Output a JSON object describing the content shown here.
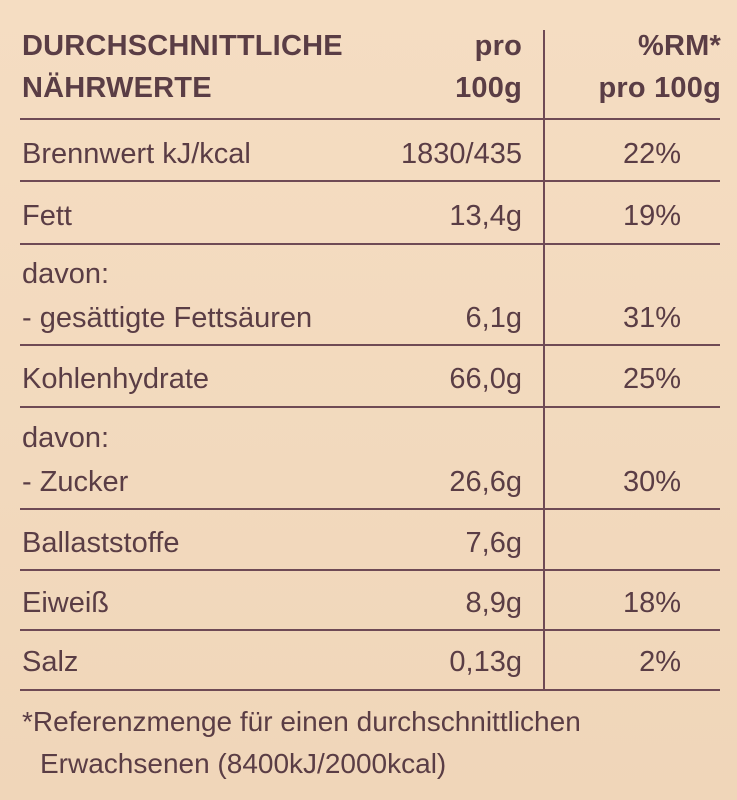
{
  "header": {
    "col1_line1": "DURCHSCHNITTLICHE",
    "col1_line2": "NÄHRWERTE",
    "col2_line1": "pro",
    "col2_line2": "100g",
    "col3_line1": "%RM*",
    "col3_line2": "pro 100g"
  },
  "rows": [
    {
      "name": "Brennwert kJ/kcal",
      "value": "1830/435",
      "rm": "22%"
    },
    {
      "name": "Fett",
      "value": "13,4g",
      "rm": "19%"
    },
    {
      "name_line1": "davon:",
      "name": "- gesättigte Fettsäuren",
      "value": "6,1g",
      "rm": "31%"
    },
    {
      "name": "Kohlenhydrate",
      "value": "66,0g",
      "rm": "25%"
    },
    {
      "name_line1": "davon:",
      "name": "- Zucker",
      "value": "26,6g",
      "rm": "30%"
    },
    {
      "name": "Ballaststoffe",
      "value": "7,6g",
      "rm": ""
    },
    {
      "name": "Eiweiß",
      "value": "8,9g",
      "rm": "18%"
    },
    {
      "name": "Salz",
      "value": "0,13g",
      "rm": "2%"
    }
  ],
  "footnote": {
    "line1": "*Referenzmenge für einen durchschnittlichen",
    "line2": "Erwachsenen (8400kJ/2000kcal)"
  }
}
